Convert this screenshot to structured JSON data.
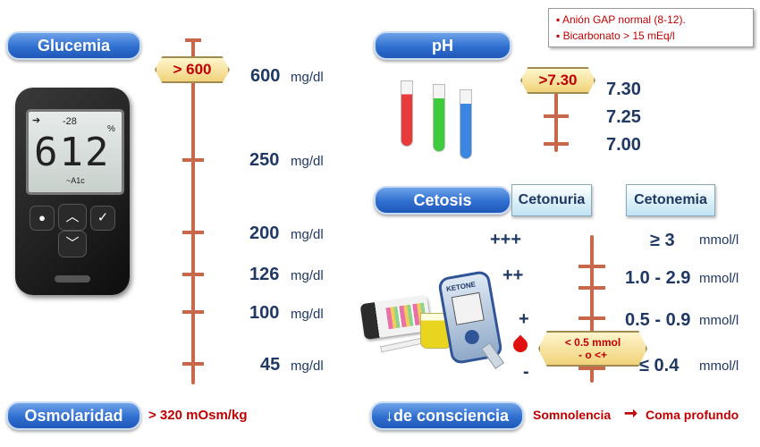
{
  "legend": {
    "items": [
      "Anión GAP normal (8-12).",
      "Bicarbonato > 15 mEq/l"
    ]
  },
  "glucemia": {
    "title": "Glucemia",
    "marker": "> 600",
    "levels": [
      {
        "value": "600",
        "unit": "mg/dl"
      },
      {
        "value": "250",
        "unit": "mg/dl"
      },
      {
        "value": "200",
        "unit": "mg/dl"
      },
      {
        "value": "126",
        "unit": "mg/dl"
      },
      {
        "value": "100",
        "unit": "mg/dl"
      },
      {
        "value": "45",
        "unit": "mg/dl"
      }
    ],
    "meter": {
      "small_reading": "-28",
      "percent": "%",
      "reading": "612",
      "sub_label": "~A1c"
    }
  },
  "ph": {
    "title": "pH",
    "marker": ">7.30",
    "levels": [
      "7.30",
      "7.25",
      "7.00"
    ],
    "tube_colors": [
      "#e83a3a",
      "#3ccc3c",
      "#3a86e0"
    ]
  },
  "cetosis": {
    "title": "Cetosis",
    "cetonuria_label": "Cetonuria",
    "cetonemia_label": "Cetonemia",
    "cetonuria_levels": [
      "+++",
      "++",
      "+",
      "-"
    ],
    "cetonemia_levels": [
      {
        "value": "≥ 3",
        "unit": "mmol/l"
      },
      {
        "value": "1.0 - 2.9",
        "unit": "mmol/l"
      },
      {
        "value": "0.5 - 0.9",
        "unit": "mmol/l"
      },
      {
        "value": "≤ 0.4",
        "unit": "mmol/l"
      }
    ],
    "marker_line1": "< 0.5 mmol",
    "marker_line2": "- o <+",
    "device_label": "KETONE"
  },
  "osmolaridad": {
    "title": "Osmolaridad",
    "value": "> 320 mOsm/kg"
  },
  "consciencia": {
    "title": "↓de consciencia",
    "from": "Somnolencia",
    "to": "Coma profundo"
  }
}
